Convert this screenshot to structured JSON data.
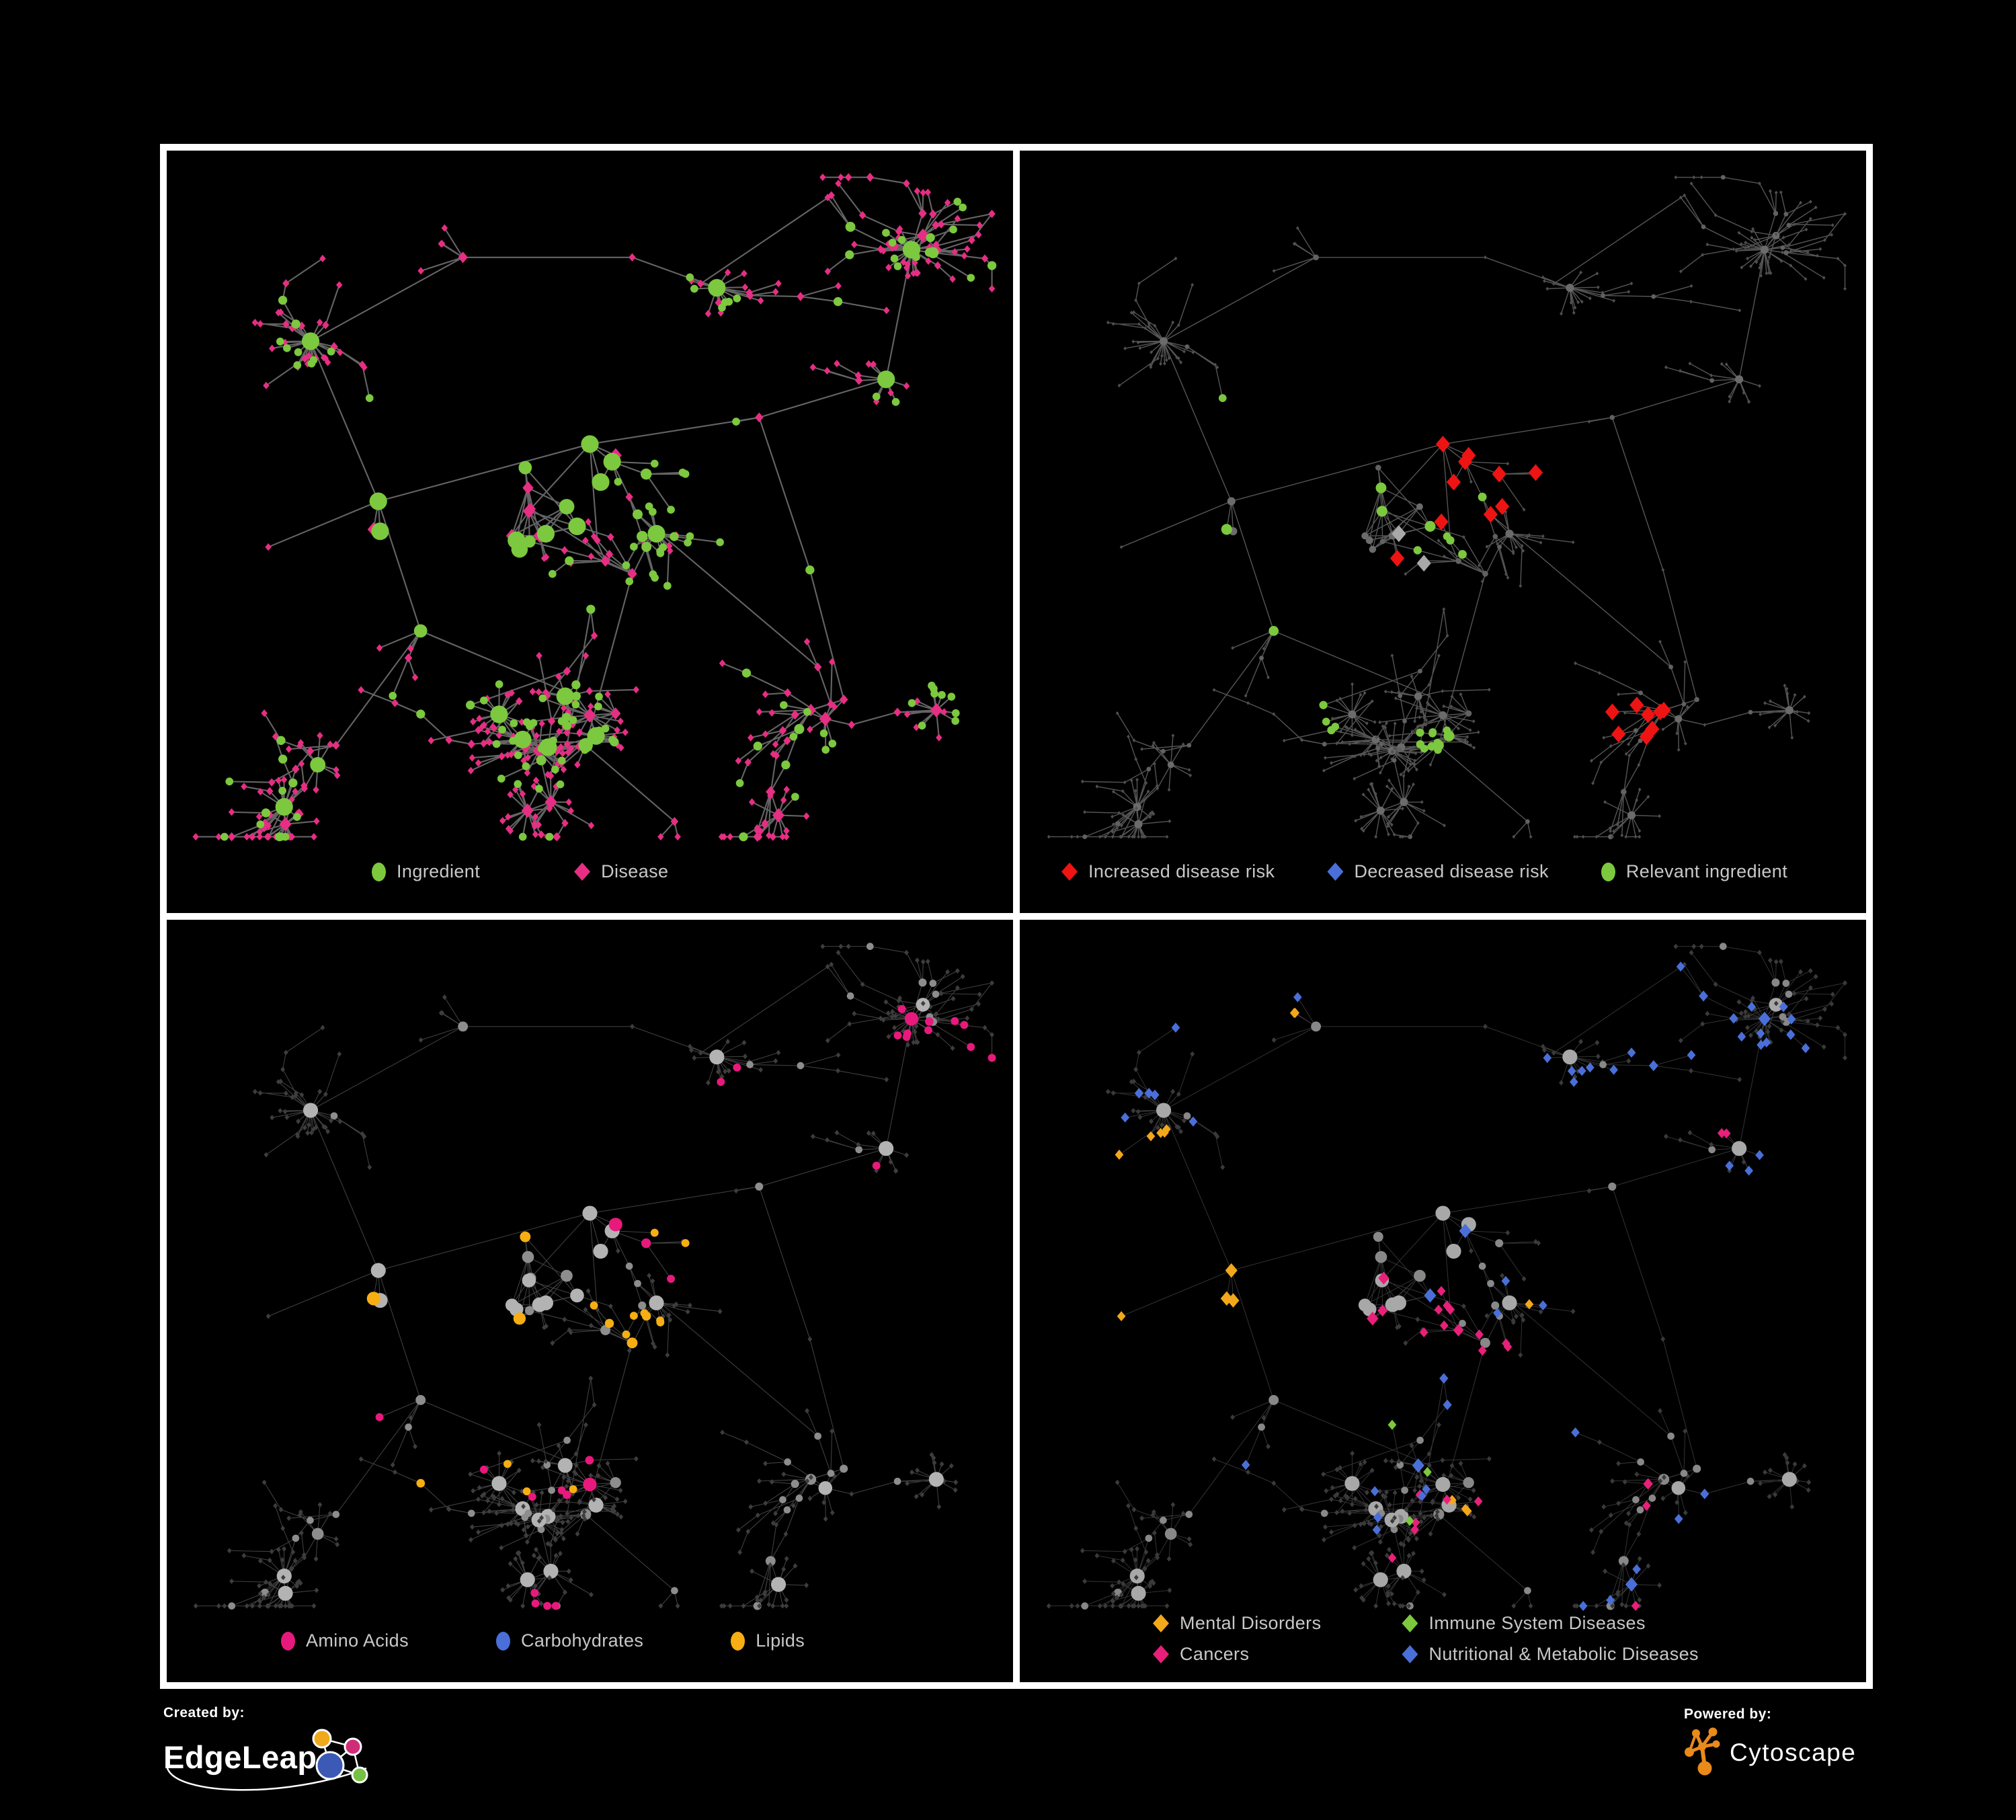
{
  "figure": {
    "type": "network",
    "description": "Four views of the same ingredient-disease association network on a black 2x2 poster grid",
    "background": "#000000",
    "grid_border_color": "#ffffff"
  },
  "network": {
    "seed": 1337,
    "nodeCount": 545,
    "burstProb": 0.085,
    "clusters": [
      [
        0.5,
        0.385
      ],
      [
        0.25,
        0.46
      ],
      [
        0.43,
        0.47
      ],
      [
        0.55,
        0.555
      ],
      [
        0.495,
        0.78
      ],
      [
        0.3,
        0.63
      ],
      [
        0.17,
        0.25
      ],
      [
        0.35,
        0.14
      ],
      [
        0.55,
        0.14
      ],
      [
        0.7,
        0.35
      ],
      [
        0.85,
        0.3
      ],
      [
        0.76,
        0.55
      ],
      [
        0.8,
        0.72
      ],
      [
        0.2,
        0.78
      ],
      [
        0.6,
        0.88
      ],
      [
        0.88,
        0.13
      ],
      [
        0.12,
        0.52
      ],
      [
        0.65,
        0.18
      ]
    ],
    "dense": [
      [
        0.5,
        0.385,
        0.055,
        60
      ],
      [
        0.25,
        0.46,
        0.05,
        40
      ],
      [
        0.43,
        0.47,
        0.06,
        45
      ]
    ],
    "longEdges": 22
  },
  "panels": [
    {
      "key": "p1",
      "name": "ingredient-disease-network",
      "seed": 11,
      "edge": {
        "color": "#6d6d6d",
        "width": 2.1,
        "opacity": 0.92
      },
      "base": "ingredient_disease",
      "colors": {
        "ingredient": "#7cc83e",
        "disease": "#e62e83"
      },
      "legend": [
        {
          "shape": "ellipse",
          "color": "#7cc83e",
          "label": "Ingredient"
        },
        {
          "shape": "diamond",
          "color": "#e62e83",
          "label": "Disease"
        }
      ]
    },
    {
      "key": "p2",
      "name": "disease-risk-network",
      "seed": 22,
      "edge": {
        "color": "#5e5e5e",
        "width": 1.4,
        "opacity": 0.9
      },
      "base": "dim",
      "baseColors": {
        "leaf": "#4f4f4f",
        "hub": "#616161",
        "bighub": "#6b6b6b"
      },
      "overlays": [
        {
          "color": "#4a6fd8",
          "shape": "diamond",
          "regions": [
            [
              0.235,
              0.44,
              0.045,
              0.75
            ],
            [
              0.8,
              0.335,
              0.026,
              1.0
            ]
          ]
        },
        {
          "color": "#ee1414",
          "shape": "diamond",
          "regions": [
            [
              0.38,
              0.45,
              0.16,
              0.26
            ],
            [
              0.25,
              0.37,
              0.05,
              0.35
            ],
            [
              0.72,
              0.72,
              0.055,
              0.5
            ],
            [
              0.55,
              0.4,
              0.08,
              0.18
            ],
            [
              0.84,
              0.9,
              0.06,
              0.25
            ]
          ]
        },
        {
          "color": "#a9a9a9",
          "shape": "diamond",
          "regions": [
            [
              0.38,
              0.46,
              0.16,
              0.07
            ],
            [
              0.5,
              0.52,
              0.1,
              0.06
            ]
          ]
        },
        {
          "color": "#7cc83e",
          "shape": "circle",
          "regions": [
            [
              0.36,
              0.46,
              0.2,
              0.17
            ],
            [
              0.15,
              0.55,
              0.08,
              0.2
            ],
            [
              0.62,
              0.42,
              0.1,
              0.12
            ],
            [
              0.35,
              0.75,
              0.03,
              0.5
            ],
            [
              0.49,
              0.77,
              0.02,
              0.8
            ],
            [
              0.8,
              0.38,
              0.03,
              0.5
            ]
          ]
        }
      ],
      "legend": [
        {
          "shape": "diamond",
          "color": "#ee1414",
          "label": "Increased disease risk"
        },
        {
          "shape": "diamond",
          "color": "#4a6fd8",
          "label": "Decreased disease risk"
        },
        {
          "shape": "ellipse",
          "color": "#7cc83e",
          "label": "Relevant ingredient"
        }
      ]
    },
    {
      "key": "p3",
      "name": "macronutrient-network",
      "seed": 33,
      "edge": {
        "color": "#9a9a9a",
        "width": 1.05,
        "opacity": 0.42
      },
      "base": "gray",
      "baseColors": {
        "leaf": "#3d3d3d",
        "hub": "#8d8d8d",
        "bighub": "#b3b3b3"
      },
      "overlays": [
        {
          "color": "#4a6fd8",
          "shape": "circle",
          "regions": [
            [
              0.46,
              0.36,
              0.05,
              0.3
            ],
            [
              0.75,
              0.62,
              0.02,
              0.6
            ],
            [
              0.03,
              0.44,
              0.02,
              0.8
            ]
          ]
        },
        {
          "color": "#f6ae13",
          "shape": "circle",
          "regions": [
            [
              0.46,
              0.37,
              0.075,
              0.8
            ],
            [
              0.4,
              0.25,
              0.13,
              0.28
            ],
            [
              0.55,
              0.55,
              0.045,
              0.65
            ],
            [
              0.3,
              0.45,
              0.1,
              0.12
            ],
            [
              0.6,
              0.42,
              0.12,
              0.1
            ],
            [
              0.45,
              0.6,
              0.25,
              0.05
            ],
            [
              0.25,
              0.12,
              0.1,
              0.15
            ]
          ]
        },
        {
          "color": "#e8197c",
          "shape": "circle",
          "regions": [
            [
              0.7,
              0.3,
              0.25,
              0.08
            ],
            [
              0.15,
              0.6,
              0.15,
              0.08
            ],
            [
              0.45,
              0.8,
              0.2,
              0.06
            ],
            [
              0.9,
              0.2,
              0.08,
              0.3
            ],
            [
              0.05,
              0.5,
              0.06,
              0.3
            ],
            [
              0.44,
              0.04,
              0.05,
              0.6
            ]
          ]
        }
      ],
      "legend": [
        {
          "shape": "ellipse",
          "color": "#e8197c",
          "label": "Amino Acids"
        },
        {
          "shape": "ellipse",
          "color": "#4a6fd8",
          "label": "Carbohydrates"
        },
        {
          "shape": "ellipse",
          "color": "#f6ae13",
          "label": "Lipids"
        }
      ]
    },
    {
      "key": "p4",
      "name": "disease-class-network",
      "seed": 44,
      "edge": {
        "color": "#9a9a9a",
        "width": 0.9,
        "opacity": 0.36
      },
      "base": "gray",
      "baseColors": {
        "leaf": "#3a3a3a",
        "hub": "#888888",
        "bighub": "#a8a8a8"
      },
      "overlays": [
        {
          "color": "#f3a71b",
          "shape": "diamond",
          "regions": [
            [
              0.19,
              0.46,
              0.115,
              0.9
            ],
            [
              0.21,
              0.46,
              0.19,
              0.3
            ],
            [
              0.3,
              0.17,
              0.09,
              0.22
            ],
            [
              0.55,
              0.75,
              0.05,
              0.3
            ],
            [
              0.42,
              0.3,
              0.3,
              0.02
            ]
          ]
        },
        {
          "color": "#e8207a",
          "shape": "diamond",
          "regions": [
            [
              0.4,
              0.47,
              0.11,
              0.5
            ],
            [
              0.86,
              0.26,
              0.045,
              0.8
            ],
            [
              0.5,
              0.57,
              0.08,
              0.3
            ],
            [
              0.3,
              0.8,
              0.05,
              0.3
            ],
            [
              0.6,
              0.9,
              0.2,
              0.06
            ],
            [
              0.75,
              0.5,
              0.25,
              0.04
            ]
          ]
        },
        {
          "color": "#4a6fd8",
          "shape": "diamond",
          "regions": [
            [
              0.53,
              0.61,
              0.05,
              0.8
            ],
            [
              0.75,
              0.3,
              0.25,
              0.17
            ],
            [
              0.4,
              0.08,
              0.35,
              0.15
            ],
            [
              0.2,
              0.7,
              0.1,
              0.12
            ],
            [
              0.65,
              0.65,
              0.3,
              0.06
            ],
            [
              0.1,
              0.15,
              0.1,
              0.2
            ]
          ]
        },
        {
          "color": "#7cc93e",
          "shape": "diamond",
          "regions": [
            [
              0.45,
              0.45,
              0.5,
              0.018
            ]
          ]
        }
      ],
      "legend": [
        {
          "shape": "diamond",
          "color": "#f3a71b",
          "label": "Mental Disorders"
        },
        {
          "shape": "diamond",
          "color": "#7cc93e",
          "label": "Immune System Diseases"
        },
        {
          "shape": "diamond",
          "color": "#e8207a",
          "label": "Cancers"
        },
        {
          "shape": "diamond",
          "color": "#4a6fd8",
          "label": "Nutritional & Metabolic Diseases"
        }
      ]
    }
  ],
  "footer": {
    "created_by": "Created by:",
    "brand": "EdgeLeap",
    "powered_by": "Powered by:",
    "engine": "Cytoscape",
    "edgeleap_colors": {
      "blue": "#3c59b5",
      "orange": "#f0a81c",
      "pink": "#cf2d78",
      "green": "#76c043",
      "line": "#ffffff"
    },
    "cytoscape_orange": "#e98a1b"
  }
}
